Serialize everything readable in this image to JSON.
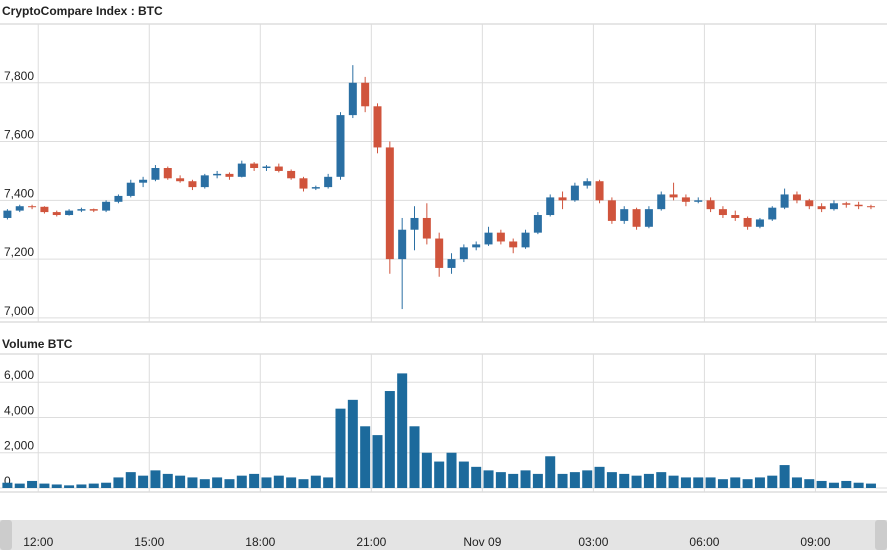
{
  "chart_data": [
    {
      "type": "candlestick",
      "title": "CryptoCompare Index : BTC",
      "up_color": "#2a6fa3",
      "down_color": "#d0543c",
      "grid": true,
      "xlim": [
        658,
        2096
      ],
      "xticks": [
        {
          "value": 720,
          "label": "12:00"
        },
        {
          "value": 900,
          "label": "15:00"
        },
        {
          "value": 1080,
          "label": "18:00"
        },
        {
          "value": 1260,
          "label": "21:00"
        },
        {
          "value": 1440,
          "label": "Nov 09"
        },
        {
          "value": 1620,
          "label": "03:00"
        },
        {
          "value": 1800,
          "label": "06:00"
        },
        {
          "value": 1980,
          "label": "09:00"
        }
      ],
      "ylim": [
        6986,
        8000
      ],
      "yticks": [
        {
          "value": 7000,
          "label": "7,000"
        },
        {
          "value": 7200,
          "label": "7,200"
        },
        {
          "value": 7400,
          "label": "7,400"
        },
        {
          "value": 7600,
          "label": "7,600"
        },
        {
          "value": 7800,
          "label": "7,800"
        }
      ],
      "x": [
        670,
        690,
        710,
        730,
        750,
        770,
        790,
        810,
        830,
        850,
        870,
        890,
        910,
        930,
        950,
        970,
        990,
        1010,
        1030,
        1050,
        1070,
        1090,
        1110,
        1130,
        1150,
        1170,
        1190,
        1210,
        1230,
        1250,
        1270,
        1290,
        1310,
        1330,
        1350,
        1370,
        1390,
        1410,
        1430,
        1450,
        1470,
        1490,
        1510,
        1530,
        1550,
        1570,
        1590,
        1610,
        1630,
        1650,
        1670,
        1690,
        1710,
        1730,
        1750,
        1770,
        1790,
        1810,
        1830,
        1850,
        1870,
        1890,
        1910,
        1930,
        1950,
        1970,
        1990,
        2010,
        2030,
        2050,
        2070
      ],
      "open": [
        7340,
        7365,
        7380,
        7378,
        7360,
        7350,
        7365,
        7370,
        7365,
        7395,
        7415,
        7460,
        7470,
        7510,
        7475,
        7465,
        7445,
        7485,
        7490,
        7480,
        7525,
        7510,
        7515,
        7500,
        7475,
        7440,
        7445,
        7480,
        7690,
        7800,
        7720,
        7580,
        7200,
        7300,
        7340,
        7270,
        7170,
        7200,
        7240,
        7250,
        7290,
        7260,
        7240,
        7290,
        7350,
        7410,
        7400,
        7450,
        7465,
        7400,
        7330,
        7370,
        7310,
        7370,
        7420,
        7410,
        7395,
        7400,
        7370,
        7350,
        7340,
        7310,
        7335,
        7375,
        7420,
        7400,
        7380,
        7370,
        7390,
        7385,
        7380
      ],
      "high": [
        7370,
        7385,
        7385,
        7380,
        7365,
        7370,
        7375,
        7372,
        7400,
        7420,
        7470,
        7480,
        7520,
        7515,
        7485,
        7470,
        7490,
        7500,
        7495,
        7535,
        7530,
        7520,
        7525,
        7505,
        7480,
        7450,
        7490,
        7700,
        7860,
        7820,
        7730,
        7600,
        7340,
        7380,
        7390,
        7290,
        7220,
        7250,
        7260,
        7310,
        7300,
        7270,
        7300,
        7360,
        7420,
        7430,
        7460,
        7475,
        7470,
        7410,
        7380,
        7375,
        7380,
        7430,
        7460,
        7420,
        7410,
        7410,
        7380,
        7365,
        7345,
        7340,
        7380,
        7440,
        7430,
        7405,
        7390,
        7400,
        7395,
        7395,
        7385
      ],
      "low": [
        7335,
        7360,
        7370,
        7355,
        7345,
        7348,
        7360,
        7360,
        7360,
        7390,
        7410,
        7445,
        7465,
        7470,
        7460,
        7435,
        7440,
        7475,
        7470,
        7478,
        7500,
        7500,
        7495,
        7470,
        7430,
        7435,
        7440,
        7470,
        7680,
        7700,
        7560,
        7150,
        7030,
        7230,
        7250,
        7140,
        7150,
        7190,
        7230,
        7245,
        7250,
        7220,
        7235,
        7285,
        7345,
        7370,
        7395,
        7440,
        7390,
        7320,
        7320,
        7300,
        7305,
        7365,
        7400,
        7380,
        7390,
        7360,
        7340,
        7330,
        7300,
        7305,
        7330,
        7370,
        7390,
        7370,
        7360,
        7365,
        7375,
        7370,
        7370
      ],
      "close": [
        7365,
        7380,
        7378,
        7360,
        7350,
        7365,
        7370,
        7365,
        7395,
        7415,
        7460,
        7470,
        7510,
        7475,
        7465,
        7445,
        7485,
        7490,
        7480,
        7525,
        7510,
        7515,
        7500,
        7475,
        7440,
        7445,
        7480,
        7690,
        7800,
        7720,
        7580,
        7200,
        7300,
        7340,
        7270,
        7170,
        7200,
        7240,
        7250,
        7290,
        7260,
        7240,
        7290,
        7350,
        7410,
        7400,
        7450,
        7465,
        7400,
        7330,
        7370,
        7310,
        7370,
        7420,
        7410,
        7395,
        7400,
        7370,
        7350,
        7340,
        7310,
        7335,
        7375,
        7420,
        7400,
        7380,
        7370,
        7390,
        7385,
        7380,
        7378
      ]
    },
    {
      "type": "bar",
      "title": "Volume BTC",
      "color": "#1c6a9c",
      "grid": true,
      "ylim": [
        0,
        7600
      ],
      "yticks": [
        0,
        {
          "value": 2000,
          "label": "2,000"
        },
        {
          "value": 4000,
          "label": "4,000"
        },
        {
          "value": 6000,
          "label": "6,000"
        }
      ],
      "values": [
        300,
        250,
        400,
        250,
        200,
        150,
        200,
        250,
        300,
        600,
        900,
        700,
        1000,
        800,
        700,
        600,
        500,
        600,
        500,
        700,
        800,
        600,
        700,
        600,
        500,
        700,
        600,
        4500,
        5000,
        3500,
        3000,
        5500,
        6500,
        3500,
        2000,
        1500,
        2000,
        1500,
        1200,
        1000,
        900,
        800,
        1000,
        800,
        1800,
        800,
        900,
        1000,
        1200,
        900,
        800,
        700,
        800,
        900,
        700,
        600,
        600,
        600,
        500,
        600,
        500,
        600,
        700,
        1300,
        600,
        500,
        400,
        300,
        400,
        300,
        250
      ]
    }
  ]
}
